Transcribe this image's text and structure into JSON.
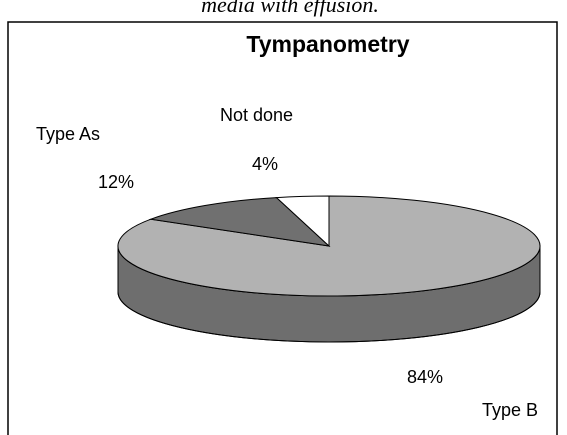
{
  "caption": "media with effusion.",
  "chart_data": {
    "type": "pie",
    "title": "Tympanometry",
    "categories": [
      "Type B",
      "Type As",
      "Not done"
    ],
    "values": [
      84,
      12,
      4
    ],
    "value_labels": [
      "84%",
      "12%",
      "4%"
    ],
    "colors": [
      "#b2b2b2",
      "#707070",
      "#ffffff"
    ]
  }
}
